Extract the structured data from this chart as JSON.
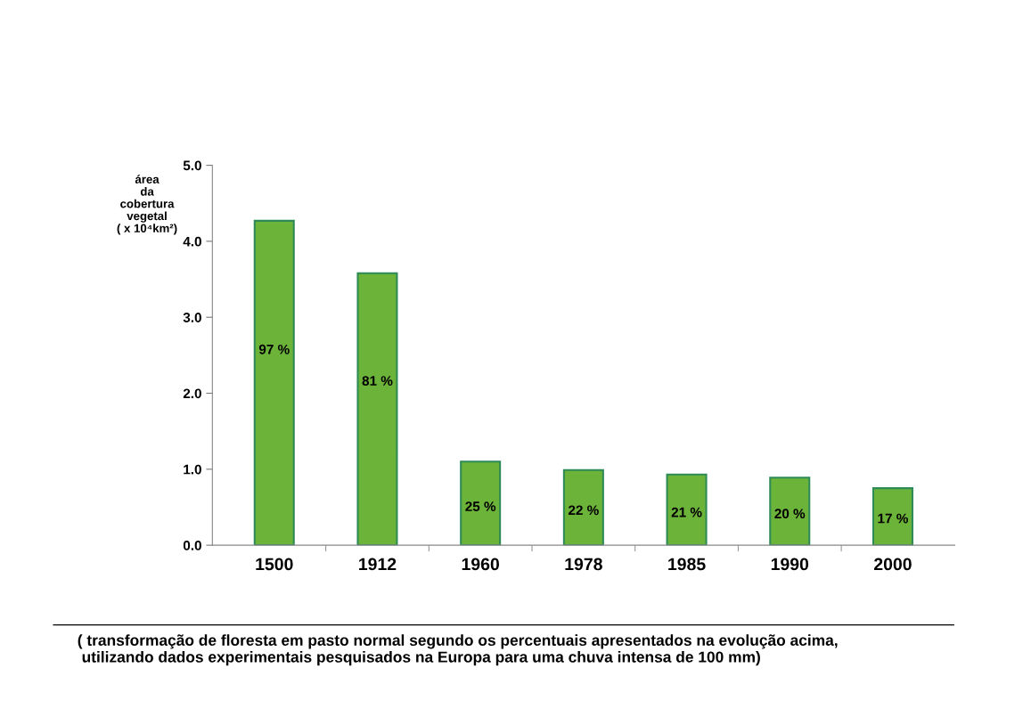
{
  "chart_data": {
    "type": "bar",
    "ylabel": "área\nda\ncobertura\nvegetal\n( x 10⁴km²)",
    "categories": [
      "1500",
      "1912",
      "1960",
      "1978",
      "1985",
      "1990",
      "2000"
    ],
    "values": [
      4.27,
      3.58,
      1.1,
      0.99,
      0.93,
      0.89,
      0.75
    ],
    "color": "#6cb33a",
    "ylim": [
      0,
      5
    ],
    "yticks": [
      {
        "value": 0,
        "label": "0.0"
      },
      {
        "value": 1,
        "label": "1.0"
      },
      {
        "value": 2,
        "label": "2.0"
      },
      {
        "value": 3,
        "label": "3.0"
      },
      {
        "value": 4,
        "label": "4.0"
      },
      {
        "value": 5,
        "label": "5.0"
      }
    ],
    "grid": false,
    "legend": false,
    "annotations": [
      "97 %",
      "81 %",
      "25 %",
      "22 %",
      "21 %",
      "20 %",
      "17 %",
      "( transformação de floresta em pasto normal segundo os percentuais apresentados na evolução acima,\n utilizando dados experimentais pesquisados na Europa para uma chuva intensa de 100 mm)"
    ]
  }
}
